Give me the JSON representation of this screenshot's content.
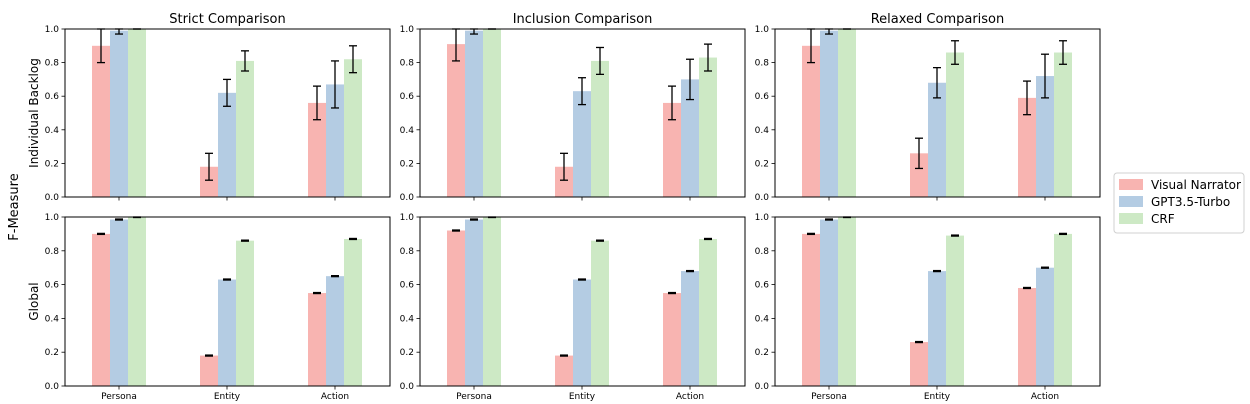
{
  "figure": {
    "ylabel": "F-Measure",
    "columns": [
      "Strict Comparison",
      "Inclusion Comparison",
      "Relaxed Comparison"
    ],
    "rows": [
      "Individual Backlog",
      "Global"
    ],
    "legend": [
      "Visual Narrator",
      "GPT3.5-Turbo",
      "CRF"
    ]
  },
  "chart_data": [
    {
      "type": "bar",
      "panel": "individual-strict",
      "title": "Strict Comparison",
      "ylabel": "Individual Backlog",
      "categories": [
        "Persona",
        "Entity",
        "Action"
      ],
      "ylim": [
        0,
        1.0
      ],
      "yticks": [
        "0.0",
        "0.2",
        "0.4",
        "0.6",
        "0.8",
        "1.0"
      ],
      "series": [
        {
          "name": "Visual Narrator",
          "color": "#f8b4b1",
          "values": [
            0.9,
            0.18,
            0.56
          ],
          "errors": [
            0.1,
            0.08,
            0.1
          ]
        },
        {
          "name": "GPT3.5-Turbo",
          "color": "#b4cce3",
          "values": [
            0.99,
            0.62,
            0.67
          ],
          "errors": [
            0.02,
            0.08,
            0.14
          ]
        },
        {
          "name": "CRF",
          "color": "#cde9c5",
          "values": [
            1.0,
            0.81,
            0.82
          ],
          "errors": [
            0.0,
            0.06,
            0.08
          ]
        }
      ]
    },
    {
      "type": "bar",
      "panel": "individual-inclusion",
      "title": "Inclusion Comparison",
      "ylabel": "",
      "categories": [
        "Persona",
        "Entity",
        "Action"
      ],
      "ylim": [
        0,
        1.0
      ],
      "yticks": [
        "0.0",
        "0.2",
        "0.4",
        "0.6",
        "0.8",
        "1.0"
      ],
      "series": [
        {
          "name": "Visual Narrator",
          "color": "#f8b4b1",
          "values": [
            0.91,
            0.18,
            0.56
          ],
          "errors": [
            0.1,
            0.08,
            0.1
          ]
        },
        {
          "name": "GPT3.5-Turbo",
          "color": "#b4cce3",
          "values": [
            0.99,
            0.63,
            0.7
          ],
          "errors": [
            0.02,
            0.08,
            0.12
          ]
        },
        {
          "name": "CRF",
          "color": "#cde9c5",
          "values": [
            1.0,
            0.81,
            0.83
          ],
          "errors": [
            0.0,
            0.08,
            0.08
          ]
        }
      ]
    },
    {
      "type": "bar",
      "panel": "individual-relaxed",
      "title": "Relaxed Comparison",
      "ylabel": "",
      "categories": [
        "Persona",
        "Entity",
        "Action"
      ],
      "ylim": [
        0,
        1.0
      ],
      "yticks": [
        "0.0",
        "0.2",
        "0.4",
        "0.6",
        "0.8",
        "1.0"
      ],
      "series": [
        {
          "name": "Visual Narrator",
          "color": "#f8b4b1",
          "values": [
            0.9,
            0.26,
            0.59
          ],
          "errors": [
            0.1,
            0.09,
            0.1
          ]
        },
        {
          "name": "GPT3.5-Turbo",
          "color": "#b4cce3",
          "values": [
            0.99,
            0.68,
            0.72
          ],
          "errors": [
            0.02,
            0.09,
            0.13
          ]
        },
        {
          "name": "CRF",
          "color": "#cde9c5",
          "values": [
            1.0,
            0.86,
            0.86
          ],
          "errors": [
            0.0,
            0.07,
            0.07
          ]
        }
      ]
    },
    {
      "type": "bar",
      "panel": "global-strict",
      "title": "",
      "ylabel": "Global",
      "categories": [
        "Persona",
        "Entity",
        "Action"
      ],
      "ylim": [
        0,
        1.0
      ],
      "yticks": [
        "0.0",
        "0.2",
        "0.4",
        "0.6",
        "0.8",
        "1.0"
      ],
      "series": [
        {
          "name": "Visual Narrator",
          "color": "#f8b4b1",
          "values": [
            0.9,
            0.18,
            0.55
          ],
          "errors": [
            0.003,
            0.003,
            0.003
          ]
        },
        {
          "name": "GPT3.5-Turbo",
          "color": "#b4cce3",
          "values": [
            0.985,
            0.63,
            0.65
          ],
          "errors": [
            0.003,
            0.003,
            0.003
          ]
        },
        {
          "name": "CRF",
          "color": "#cde9c5",
          "values": [
            1.0,
            0.86,
            0.87
          ],
          "errors": [
            0.003,
            0.003,
            0.003
          ]
        }
      ]
    },
    {
      "type": "bar",
      "panel": "global-inclusion",
      "title": "",
      "ylabel": "",
      "categories": [
        "Persona",
        "Entity",
        "Action"
      ],
      "ylim": [
        0,
        1.0
      ],
      "yticks": [
        "0.0",
        "0.2",
        "0.4",
        "0.6",
        "0.8",
        "1.0"
      ],
      "series": [
        {
          "name": "Visual Narrator",
          "color": "#f8b4b1",
          "values": [
            0.92,
            0.18,
            0.55
          ],
          "errors": [
            0.003,
            0.003,
            0.003
          ]
        },
        {
          "name": "GPT3.5-Turbo",
          "color": "#b4cce3",
          "values": [
            0.985,
            0.63,
            0.68
          ],
          "errors": [
            0.003,
            0.003,
            0.003
          ]
        },
        {
          "name": "CRF",
          "color": "#cde9c5",
          "values": [
            1.0,
            0.86,
            0.87
          ],
          "errors": [
            0.003,
            0.003,
            0.003
          ]
        }
      ]
    },
    {
      "type": "bar",
      "panel": "global-relaxed",
      "title": "",
      "ylabel": "",
      "categories": [
        "Persona",
        "Entity",
        "Action"
      ],
      "ylim": [
        0,
        1.0
      ],
      "yticks": [
        "0.0",
        "0.2",
        "0.4",
        "0.6",
        "0.8",
        "1.0"
      ],
      "series": [
        {
          "name": "Visual Narrator",
          "color": "#f8b4b1",
          "values": [
            0.9,
            0.26,
            0.58
          ],
          "errors": [
            0.003,
            0.003,
            0.003
          ]
        },
        {
          "name": "GPT3.5-Turbo",
          "color": "#b4cce3",
          "values": [
            0.985,
            0.68,
            0.7
          ],
          "errors": [
            0.003,
            0.003,
            0.003
          ]
        },
        {
          "name": "CRF",
          "color": "#cde9c5",
          "values": [
            1.0,
            0.89,
            0.9
          ],
          "errors": [
            0.003,
            0.003,
            0.003
          ]
        }
      ]
    }
  ]
}
